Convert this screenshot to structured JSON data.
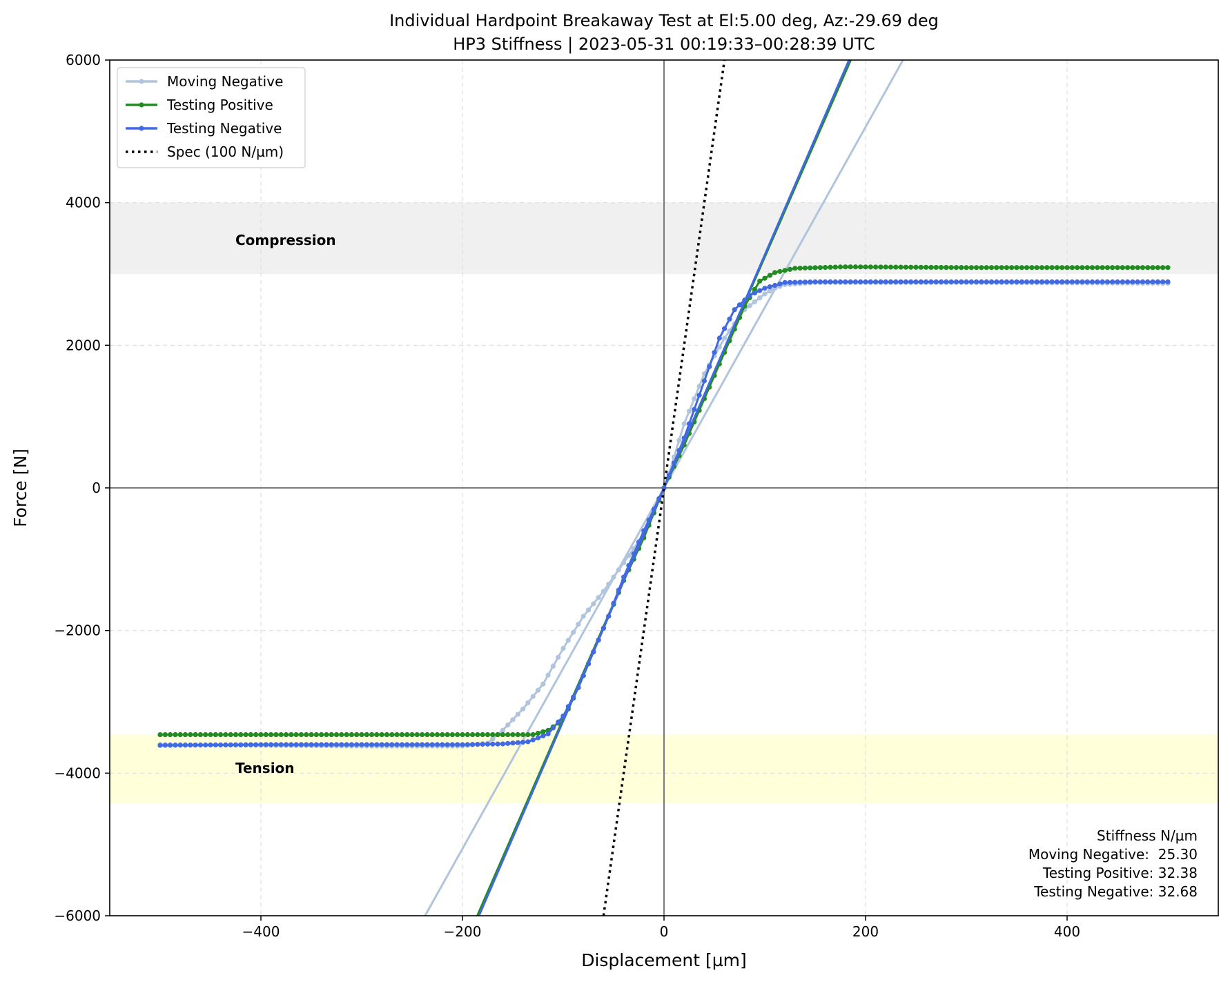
{
  "chart_data": {
    "type": "line",
    "title": "Individual Hardpoint Breakaway Test at El:5.00 deg, Az:-29.69 deg",
    "subtitle": "HP3 Stiffness | 2023-05-31 00:19:33–00:28:39 UTC",
    "xlabel": "Displacement [µm]",
    "ylabel": "Force [N]",
    "xlim": [
      -550,
      550
    ],
    "ylim": [
      -6000,
      6000
    ],
    "xticks": [
      -400,
      -200,
      0,
      200,
      400
    ],
    "yticks": [
      -6000,
      -4000,
      -2000,
      0,
      2000,
      4000,
      6000
    ],
    "xtick_labels": [
      "−400",
      "−200",
      "0",
      "200",
      "400"
    ],
    "ytick_labels": [
      "−6000",
      "−4000",
      "−2000",
      "0",
      "2000",
      "4000",
      "6000"
    ],
    "grid": true,
    "legend_position": "top-left",
    "bands": [
      {
        "label": "Compression",
        "y_range": [
          3000,
          4000
        ],
        "color": "#f0f0f0"
      },
      {
        "label": "Tension",
        "y_range": [
          -4420,
          -3460
        ],
        "color": "#ffffd9"
      }
    ],
    "series": [
      {
        "name": "Moving Negative",
        "color": "#b0c4de",
        "marker": "dot",
        "points": [
          [
            500,
            2870
          ],
          [
            300,
            2880
          ],
          [
            200,
            2880
          ],
          [
            150,
            2880
          ],
          [
            120,
            2850
          ],
          [
            110,
            2800
          ],
          [
            100,
            2720
          ],
          [
            80,
            2500
          ],
          [
            60,
            2100
          ],
          [
            40,
            1600
          ],
          [
            20,
            900
          ],
          [
            5,
            200
          ],
          [
            0,
            0
          ],
          [
            -10,
            -350
          ],
          [
            -25,
            -750
          ],
          [
            -40,
            -1050
          ],
          [
            -60,
            -1450
          ],
          [
            -80,
            -1800
          ],
          [
            -100,
            -2250
          ],
          [
            -120,
            -2750
          ],
          [
            -140,
            -3100
          ],
          [
            -160,
            -3400
          ],
          [
            -175,
            -3580
          ],
          [
            -200,
            -3620
          ],
          [
            -300,
            -3620
          ],
          [
            -400,
            -3610
          ],
          [
            -500,
            -3600
          ]
        ],
        "fit": {
          "slope": 25.3,
          "intercept": 0,
          "x_range": [
            -242,
            238
          ]
        }
      },
      {
        "name": "Testing Positive",
        "color": "#228b22",
        "marker": "dot",
        "points": [
          [
            -500,
            -3460
          ],
          [
            -400,
            -3460
          ],
          [
            -300,
            -3460
          ],
          [
            -200,
            -3460
          ],
          [
            -130,
            -3460
          ],
          [
            -115,
            -3400
          ],
          [
            -105,
            -3300
          ],
          [
            -95,
            -3100
          ],
          [
            -85,
            -2800
          ],
          [
            -70,
            -2300
          ],
          [
            -55,
            -1800
          ],
          [
            -40,
            -1300
          ],
          [
            -20,
            -700
          ],
          [
            0,
            0
          ],
          [
            20,
            600
          ],
          [
            40,
            1250
          ],
          [
            60,
            1900
          ],
          [
            80,
            2550
          ],
          [
            95,
            2900
          ],
          [
            110,
            3020
          ],
          [
            130,
            3080
          ],
          [
            180,
            3100
          ],
          [
            300,
            3090
          ],
          [
            400,
            3090
          ],
          [
            500,
            3090
          ]
        ],
        "fit": {
          "slope": 32.38,
          "intercept": 0,
          "x_range": [
            -186,
            186
          ]
        }
      },
      {
        "name": "Testing Negative",
        "color": "#4169e1",
        "marker": "dot",
        "points": [
          [
            500,
            2890
          ],
          [
            400,
            2890
          ],
          [
            300,
            2890
          ],
          [
            200,
            2890
          ],
          [
            150,
            2890
          ],
          [
            120,
            2880
          ],
          [
            100,
            2800
          ],
          [
            85,
            2700
          ],
          [
            70,
            2500
          ],
          [
            55,
            2100
          ],
          [
            40,
            1500
          ],
          [
            20,
            700
          ],
          [
            0,
            0
          ],
          [
            -20,
            -600
          ],
          [
            -40,
            -1250
          ],
          [
            -55,
            -1800
          ],
          [
            -70,
            -2300
          ],
          [
            -85,
            -2800
          ],
          [
            -100,
            -3200
          ],
          [
            -115,
            -3450
          ],
          [
            -135,
            -3560
          ],
          [
            -160,
            -3590
          ],
          [
            -200,
            -3600
          ],
          [
            -300,
            -3600
          ],
          [
            -400,
            -3600
          ],
          [
            -500,
            -3610
          ]
        ],
        "fit": {
          "slope": 32.68,
          "intercept": 0,
          "x_range": [
            -184,
            184
          ]
        }
      },
      {
        "name": "Spec (100 N/µm)",
        "color": "#000000",
        "style": "dotted",
        "points": [
          [
            -60,
            -6000
          ],
          [
            60,
            6000
          ]
        ]
      }
    ],
    "annotations": {
      "compression_label": "Compression",
      "tension_label": "Tension",
      "stiffness_box": {
        "heading": "Stiffness N/µm",
        "lines": [
          "Moving Negative:  25.30",
          "Testing Positive: 32.38",
          "Testing Negative: 32.68"
        ]
      }
    }
  }
}
